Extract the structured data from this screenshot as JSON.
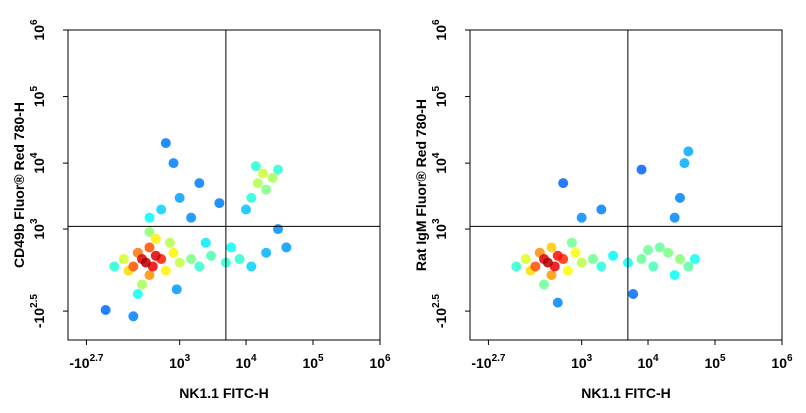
{
  "chart_data": [
    {
      "type": "scatter",
      "xlabel": "NK1.1 FITC-H",
      "ylabel": "CD49b Fluor® Red 780-H",
      "xscale": "biex",
      "yscale": "biex",
      "xlim": [
        -1000,
        1000000
      ],
      "ylim": [
        -1000,
        1000000
      ],
      "xticks": [
        {
          "value": -501,
          "label": "-10",
          "power": "2.7"
        },
        {
          "value": 1000,
          "label": "10",
          "power": "3"
        },
        {
          "value": 10000,
          "label": "10",
          "power": "4"
        },
        {
          "value": 100000,
          "label": "10",
          "power": "5"
        },
        {
          "value": 1000000,
          "label": "10",
          "power": "6"
        }
      ],
      "yticks": [
        {
          "value": -316,
          "label": "-10",
          "power": "2.5"
        },
        {
          "value": 1000,
          "label": "10",
          "power": "3"
        },
        {
          "value": 10000,
          "label": "10",
          "power": "4"
        },
        {
          "value": 100000,
          "label": "10",
          "power": "5"
        },
        {
          "value": 1000000,
          "label": "10",
          "power": "6"
        }
      ],
      "gate": {
        "x": 5000,
        "y": 1100
      },
      "x": [
        100,
        200,
        300,
        150,
        250,
        400,
        50,
        350,
        500,
        200,
        300,
        600,
        800,
        0,
        -100,
        1000,
        1500,
        2000,
        3000,
        5000,
        8000,
        12000,
        20000,
        700,
        400,
        150,
        900,
        2500,
        6000,
        300,
        500,
        1000,
        300,
        2000,
        800,
        4000,
        600,
        1500,
        12000,
        15000,
        18000,
        20000,
        14000,
        25000,
        10000,
        30000,
        40000,
        30000,
        -200,
        100
      ],
      "y": [
        200,
        300,
        100,
        400,
        250,
        350,
        150,
        200,
        300,
        0,
        500,
        150,
        400,
        300,
        200,
        250,
        300,
        200,
        350,
        250,
        300,
        200,
        400,
        600,
        700,
        -100,
        -50,
        600,
        500,
        900,
        2000,
        3000,
        1500,
        5000,
        10000,
        2500,
        20000,
        1500,
        3000,
        5000,
        7000,
        4000,
        9000,
        6000,
        2000,
        8000,
        500,
        1000,
        -300,
        -400
      ]
    },
    {
      "type": "scatter",
      "xlabel": "NK1.1 FITC-H",
      "ylabel": "Rat IgM Fluor® Red 780-H",
      "xscale": "biex",
      "yscale": "biex",
      "xlim": [
        -1000,
        1000000
      ],
      "ylim": [
        -1000,
        1000000
      ],
      "xticks": [
        {
          "value": -501,
          "label": "-10",
          "power": "2.7"
        },
        {
          "value": 1000,
          "label": "10",
          "power": "3"
        },
        {
          "value": 10000,
          "label": "10",
          "power": "4"
        },
        {
          "value": 100000,
          "label": "10",
          "power": "5"
        },
        {
          "value": 1000000,
          "label": "10",
          "power": "6"
        }
      ],
      "yticks": [
        {
          "value": -316,
          "label": "-10",
          "power": "2.5"
        },
        {
          "value": 1000,
          "label": "10",
          "power": "3"
        },
        {
          "value": 10000,
          "label": "10",
          "power": "4"
        },
        {
          "value": 100000,
          "label": "10",
          "power": "5"
        },
        {
          "value": 1000000,
          "label": "10",
          "power": "6"
        }
      ],
      "gate": {
        "x": 5000,
        "y": 1100
      },
      "x": [
        100,
        200,
        300,
        150,
        250,
        400,
        50,
        350,
        500,
        200,
        300,
        600,
        800,
        0,
        -100,
        1000,
        1500,
        2000,
        3000,
        5000,
        8000,
        12000,
        20000,
        30000,
        40000,
        15000,
        25000,
        50000,
        6000,
        10000,
        700,
        400,
        30000,
        35000,
        25000,
        2000,
        500,
        8000,
        40000,
        1000
      ],
      "y": [
        200,
        300,
        100,
        400,
        250,
        350,
        150,
        200,
        300,
        0,
        500,
        150,
        400,
        300,
        200,
        250,
        300,
        200,
        350,
        250,
        300,
        200,
        400,
        300,
        200,
        500,
        100,
        300,
        -100,
        450,
        600,
        -200,
        3000,
        10000,
        1500,
        2000,
        5000,
        8000,
        15000,
        1500
      ]
    }
  ]
}
